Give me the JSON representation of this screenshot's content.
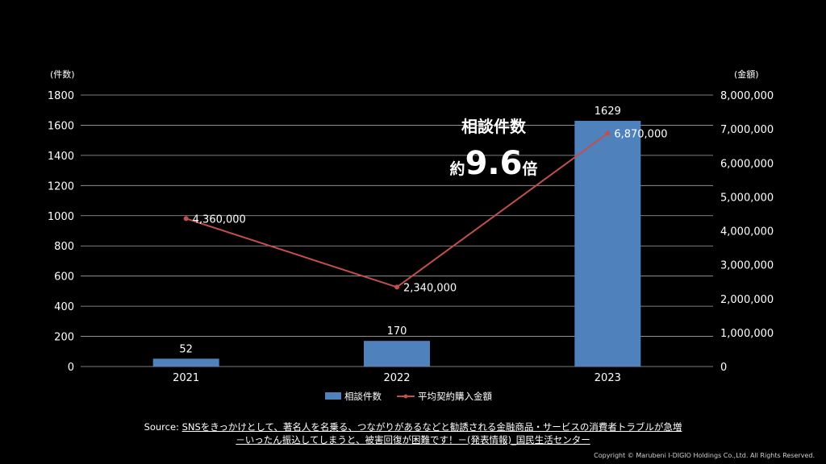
{
  "chart_data": {
    "type": "bar+line",
    "categories": [
      "2021",
      "2022",
      "2023"
    ],
    "left_axis": {
      "unit": "(件数)",
      "range": [
        0,
        1800
      ],
      "ticks": [
        0,
        200,
        400,
        600,
        800,
        1000,
        1200,
        1400,
        1600,
        1800
      ]
    },
    "right_axis": {
      "unit": "(金額)",
      "range": [
        0,
        8000000
      ],
      "ticks": [
        "0",
        "1,000,000",
        "2,000,000",
        "3,000,000",
        "4,000,000",
        "5,000,000",
        "6,000,000",
        "7,000,000",
        "8,000,000"
      ]
    },
    "series": [
      {
        "name": "相談件数",
        "kind": "bar",
        "axis": "left",
        "values": [
          52,
          170,
          1629
        ],
        "labels": [
          "52",
          "170",
          "1629"
        ],
        "color": "#4f81bd"
      },
      {
        "name": "平均契約購入金額",
        "kind": "line",
        "axis": "right",
        "values": [
          4360000,
          2340000,
          6870000
        ],
        "labels": [
          "4,360,000",
          "2,340,000",
          "6,870,000"
        ],
        "color": "#c0504d"
      }
    ],
    "grid": true,
    "legend": "bottom",
    "callout": {
      "line1": "相談件数",
      "prefix": "約",
      "value": "9.6",
      "suffix": "倍"
    }
  },
  "source": {
    "prefix": "Source: ",
    "line1": "SNSをきっかけとして、著名人を名乗る、つながりがあるなどと勧誘される金融商品・サービスの消費者トラブルが急増",
    "line2": "－いったん振込してしまうと、被害回復が困難です！－(発表情報)_国民生活センター"
  },
  "copyright": "Copyright © Marubeni I-DIGIO Holdings Co.,Ltd. All Rights Reserved."
}
